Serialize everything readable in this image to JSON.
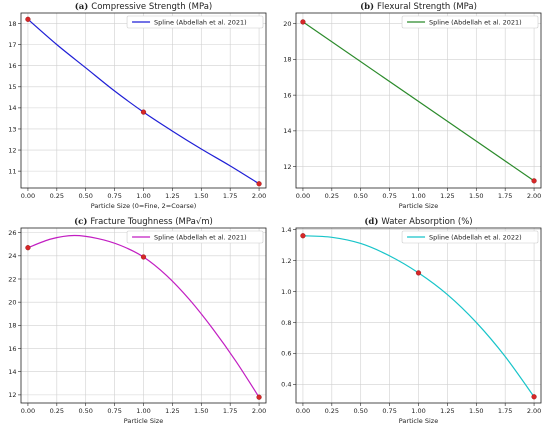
{
  "chart_data": [
    {
      "type": "line",
      "panel_tag": "(a)",
      "title": "Compressive Strength (MPa)",
      "xlabel": "Particle Size (0=Fine, 2=Coarse)",
      "ylabel": "",
      "xlim": [
        -0.06,
        2.06
      ],
      "ylim": [
        10.2,
        18.5
      ],
      "xticks": [
        0.0,
        0.25,
        0.5,
        0.75,
        1.0,
        1.25,
        1.5,
        1.75,
        2.0
      ],
      "xtick_labels": [
        "0.00",
        "0.25",
        "0.50",
        "0.75",
        "1.00",
        "1.25",
        "1.50",
        "1.75",
        "2.00"
      ],
      "yticks": [
        11,
        12,
        13,
        14,
        15,
        16,
        17,
        18
      ],
      "ytick_labels": [
        "11",
        "12",
        "13",
        "14",
        "15",
        "16",
        "17",
        "18"
      ],
      "grid": true,
      "legend_position": "top-right",
      "series": [
        {
          "name": "Spline (Abdellah et al. 2021)",
          "color": "#1f1fd6",
          "x": [
            0.0,
            0.25,
            0.5,
            0.75,
            1.0,
            1.25,
            1.5,
            1.75,
            2.0
          ],
          "y": [
            18.2,
            17.0,
            15.9,
            14.8,
            13.8,
            12.9,
            12.05,
            11.25,
            10.4
          ]
        }
      ],
      "points": {
        "color": "#d62728",
        "x": [
          0,
          1,
          2
        ],
        "y": [
          18.2,
          13.8,
          10.4
        ]
      }
    },
    {
      "type": "line",
      "panel_tag": "(b)",
      "title": "Flexural Strength (MPa)",
      "xlabel": "Particle Size",
      "ylabel": "",
      "xlim": [
        -0.06,
        2.06
      ],
      "ylim": [
        10.8,
        20.6
      ],
      "xticks": [
        0.0,
        0.25,
        0.5,
        0.75,
        1.0,
        1.25,
        1.5,
        1.75,
        2.0
      ],
      "xtick_labels": [
        "0.00",
        "0.25",
        "0.50",
        "0.75",
        "1.00",
        "1.25",
        "1.50",
        "1.75",
        "2.00"
      ],
      "yticks": [
        12,
        14,
        16,
        18,
        20
      ],
      "ytick_labels": [
        "12",
        "14",
        "16",
        "18",
        "20"
      ],
      "grid": true,
      "legend_position": "top-right",
      "series": [
        {
          "name": "Spline (Abdellah et al. 2021)",
          "color": "#2a8a2a",
          "x": [
            0.0,
            2.0
          ],
          "y": [
            20.1,
            11.2
          ]
        }
      ],
      "points": {
        "color": "#d62728",
        "x": [
          0,
          2
        ],
        "y": [
          20.1,
          11.2
        ]
      }
    },
    {
      "type": "line",
      "panel_tag": "(c)",
      "title": "Fracture Toughness (MPa√m)",
      "xlabel": "Particle Size",
      "ylabel": "",
      "xlim": [
        -0.06,
        2.06
      ],
      "ylim": [
        11.3,
        26.4
      ],
      "xticks": [
        0.0,
        0.25,
        0.5,
        0.75,
        1.0,
        1.25,
        1.5,
        1.75,
        2.0
      ],
      "xtick_labels": [
        "0.00",
        "0.25",
        "0.50",
        "0.75",
        "1.00",
        "1.25",
        "1.50",
        "1.75",
        "2.00"
      ],
      "yticks": [
        12,
        14,
        16,
        18,
        20,
        22,
        24,
        26
      ],
      "ytick_labels": [
        "12",
        "14",
        "16",
        "18",
        "20",
        "22",
        "24",
        "26"
      ],
      "grid": true,
      "legend_position": "top-right",
      "series": [
        {
          "name": "Spline (Abdellah et al. 2021)",
          "color": "#c21ec2",
          "x": [
            0.0,
            0.2,
            0.4,
            0.6,
            0.8,
            1.0,
            1.2,
            1.4,
            1.6,
            1.8,
            2.0
          ],
          "y": [
            24.7,
            25.45,
            25.75,
            25.5,
            24.9,
            23.9,
            22.3,
            20.2,
            17.7,
            14.9,
            11.8
          ]
        }
      ],
      "points": {
        "color": "#d62728",
        "x": [
          0,
          1,
          2
        ],
        "y": [
          24.7,
          23.9,
          11.8
        ]
      }
    },
    {
      "type": "line",
      "panel_tag": "(d)",
      "title": "Water Absorption (%)",
      "xlabel": "Particle Size",
      "ylabel": "",
      "xlim": [
        -0.06,
        2.06
      ],
      "ylim": [
        0.28,
        1.41
      ],
      "xticks": [
        0.0,
        0.25,
        0.5,
        0.75,
        1.0,
        1.25,
        1.5,
        1.75,
        2.0
      ],
      "xtick_labels": [
        "0.00",
        "0.25",
        "0.50",
        "0.75",
        "1.00",
        "1.25",
        "1.50",
        "1.75",
        "2.00"
      ],
      "yticks": [
        0.4,
        0.6,
        0.8,
        1.0,
        1.2,
        1.4
      ],
      "ytick_labels": [
        "0.4",
        "0.6",
        "0.8",
        "1.0",
        "1.2",
        "1.4"
      ],
      "grid": true,
      "legend_position": "top-right",
      "series": [
        {
          "name": "Spline (Abdellah et al. 2022)",
          "color": "#17c4c9",
          "x": [
            0.0,
            0.25,
            0.5,
            0.75,
            1.0,
            1.25,
            1.5,
            1.75,
            2.0
          ],
          "y": [
            1.36,
            1.35,
            1.31,
            1.23,
            1.12,
            0.98,
            0.8,
            0.58,
            0.32
          ]
        }
      ],
      "points": {
        "color": "#d62728",
        "x": [
          0,
          1,
          2
        ],
        "y": [
          1.36,
          1.12,
          0.32
        ]
      }
    }
  ]
}
